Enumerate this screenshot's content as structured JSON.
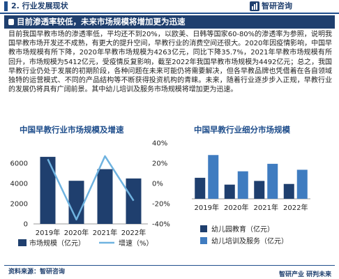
{
  "header": {
    "section_title": "2. 行业发展现状",
    "brand": "智研咨询"
  },
  "banner": {
    "text": "目前渗透率较低，未来市场规模将增加更为迅速"
  },
  "paragraph": "目前我国早教市场的渗透率低，平均还不到20%，以欧美、日韩等国家60-80%的渗透率为参照，说明我国早教市场开发还不成熟，有更大的提升空间，早教行业的消费空间还很大。2020年因疫情影响，中国早教市场规模有所下降，2020年早教市场规模为4263亿元，同比下降35.7%，2021年早教市场规模有所回升，市场规模为5412亿元，受疫情反复影响，截至2022年我国早教市场规模为4492亿元；总之，我国早教行业仍处于发展的初期阶段，各种问题在未来可能仍将需要解决，但各早教品牌也凭借着在各自领域独特的运营模式、不同的产品结构等不断获得投资机构的青睐。未来，随着行业逐步步入正规，早教行业的发展仍将具有广阔前景。其中幼儿培训及服务市场规模将增加更为迅速。",
  "footer": {
    "source": "资料来源：智研咨询",
    "slogan": "智研产业 研判未来"
  },
  "colors": {
    "navy": "#1f3f6e",
    "bar_primary": "#1f3f6e",
    "line_growth": "#6fb3e0",
    "bar_kindergarten": "#1f3f6e",
    "bar_training": "#3f7cc0"
  },
  "chart_data": [
    {
      "type": "bar",
      "title": "中国早教行业市场规模及增速",
      "categories": [
        "2019年",
        "2020年",
        "2021年",
        "2022年"
      ],
      "series": [
        {
          "name": "市场规模（亿元）",
          "values": [
            6630,
            4263,
            5412,
            4492
          ]
        },
        {
          "name": "增速（%）",
          "values": [
            24.0,
            -35.7,
            27.0,
            -17.0
          ],
          "type": "line",
          "axis": "right"
        }
      ],
      "y_ticks": [
        "0",
        "2000",
        "4000",
        "6000"
      ],
      "y_right_ticks": [
        "-40%",
        "-20%",
        "0%",
        "20%",
        "40%"
      ],
      "ylim": [
        0,
        8000
      ],
      "y2lim": [
        -40,
        40
      ],
      "legend": "bottom"
    },
    {
      "type": "bar",
      "title": "中国早教行业细分市场规模",
      "categories": [
        "2019年",
        "2020年",
        "2021年",
        "2022年"
      ],
      "series": [
        {
          "name": "幼儿园教育（亿元）",
          "values": [
            2150,
            1450,
            1830,
            1520
          ]
        },
        {
          "name": "幼儿培训及服务（亿元）",
          "values": [
            4480,
            2813,
            3582,
            2972
          ]
        }
      ],
      "ylim": [
        0,
        5000
      ],
      "legend": "bottom"
    }
  ]
}
